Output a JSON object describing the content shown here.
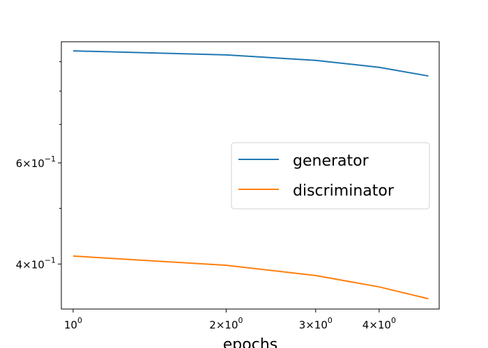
{
  "chart_data": {
    "type": "line",
    "xlabel": "epochs",
    "ylabel": "",
    "xscale": "log",
    "yscale": "log",
    "xlim": [
      0.948,
      5.25
    ],
    "ylim": [
      0.334,
      0.975
    ],
    "grid": false,
    "legend_position": "center-right",
    "x": [
      1,
      2,
      3,
      4,
      5
    ],
    "x_tick_labels": [
      {
        "value": 1,
        "base": "10",
        "exp": "0"
      },
      {
        "value": 2,
        "base": "2×10",
        "exp": "0"
      },
      {
        "value": 3,
        "base": "3×10",
        "exp": "0"
      },
      {
        "value": 4,
        "base": "4×10",
        "exp": "0"
      }
    ],
    "y_tick_labels": [
      {
        "value": 0.6,
        "base": "6×10",
        "exp": "−1"
      },
      {
        "value": 0.4,
        "base": "4×10",
        "exp": "−1"
      }
    ],
    "y_minor_ticks": [
      0.7,
      0.8,
      0.9,
      0.5
    ],
    "series": [
      {
        "name": "generator",
        "color": "#1f77b4",
        "values": [
          0.94,
          0.925,
          0.905,
          0.88,
          0.85
        ]
      },
      {
        "name": "discriminator",
        "color": "#ff7f0e",
        "values": [
          0.413,
          0.398,
          0.382,
          0.365,
          0.348
        ]
      }
    ]
  }
}
